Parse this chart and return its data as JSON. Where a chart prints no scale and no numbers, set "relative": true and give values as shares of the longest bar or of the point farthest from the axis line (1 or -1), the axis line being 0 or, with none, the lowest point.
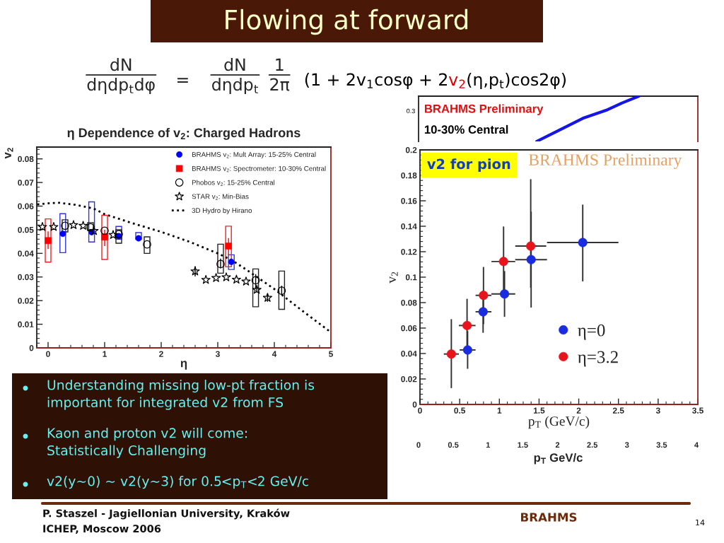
{
  "chart_data": [
    {
      "type": "other",
      "title": "Flowing at forward",
      "annotations": [
        "dN",
        "dηdp$_{t}$dφ",
        "=",
        "dN",
        "dηdp$_{t}$",
        "1",
        "2π",
        "(1 + 2v$_{1}$cosφ + 2",
        "v$_{2}$",
        "(η,p$_{t}$)cos2φ)",
        "Understanding missing low-pt fraction is important for integrated v2 from FS",
        "Kaon and proton v2 will come: Statistically Challenging",
        "v2(y~0) ~ v2(y~3) for 0.5<p$_{T}$<2 GeV/c",
        "P. Staszel - Jagiellonian University, Kraków",
        "ICHEP, Moscow 2006",
        "BRAHMS",
        "14"
      ]
    },
    {
      "type": "scatter",
      "title": "η Dependence of v$_{2}$: Charged Hadrons",
      "xlabel": "η",
      "ylabel": "v$_{2}$",
      "xlim": [
        -0.2,
        5
      ],
      "ylim": [
        0,
        0.085
      ],
      "xticks": [
        0,
        1,
        2,
        3,
        4,
        5
      ],
      "yticks": [
        0,
        0.01,
        0.02,
        0.03,
        0.04,
        0.05,
        0.06,
        0.07,
        0.08
      ],
      "legend": "top right",
      "series": [
        {
          "name": "BRAHMS v$_{2}$: Mult Array: 15-25% Central",
          "type": "scatter",
          "marker": "circle",
          "color": "#0000ff",
          "x": [
            0.26,
            0.77,
            1.25,
            1.6,
            3.24
          ],
          "values": [
            0.0483,
            0.049,
            0.0473,
            0.0464,
            0.0364
          ]
        },
        {
          "name": "BRAHMS v$_{2}$: Spectrometer: 10-30% Central",
          "type": "scatter",
          "marker": "square",
          "color": "#ff0000",
          "x": [
            0,
            1,
            3.19
          ],
          "values": [
            0.0454,
            0.0469,
            0.0431
          ],
          "errors": [
            [
              0.0418,
              0.0493
            ],
            [
              0.0431,
              0.05
            ],
            [
              0.0392,
              0.0465
            ]
          ]
        },
        {
          "name": "Phobos v$_{2}$: 15-25% Central",
          "type": "scatter",
          "marker": "circle",
          "color": "#000000",
          "x": [
            0.3,
            0.75,
            1.0,
            1.25,
            1.75,
            3.05,
            3.67,
            4.13
          ],
          "values": [
            0.0517,
            0.051,
            0.0496,
            0.0481,
            0.0438,
            0.0355,
            0.0286,
            0.0242
          ],
          "errors": [
            null,
            null,
            null,
            null,
            null,
            [
              0.0337,
              0.0378
            ],
            [
              0.0249,
              0.0312
            ],
            [
              0.0224,
              0.0263
            ]
          ]
        },
        {
          "name": "STAR v$_{2}$: Min-Bias",
          "type": "scatter",
          "marker": "star",
          "color": "#000000",
          "x": [
            -0.1,
            0.1,
            0.45,
            0.62,
            0.81,
            1.15,
            2.6,
            2.79,
            2.97,
            3.15,
            3.33,
            3.5,
            3.69,
            3.88
          ],
          "values": [
            0.0512,
            0.0512,
            0.052,
            0.0517,
            0.0495,
            0.0478,
            0.0324,
            0.0288,
            0.0296,
            0.0299,
            0.0289,
            0.0281,
            0.0246,
            0.0212
          ],
          "errors": [
            null,
            null,
            null,
            null,
            null,
            null,
            [
              0.0302,
              0.0346
            ],
            null,
            null,
            null,
            null,
            null,
            [
              0.0234,
              0.0259
            ],
            [
              0.0195,
              0.0229
            ]
          ]
        },
        {
          "name": "3D Hydro by Hirano",
          "type": "line",
          "line_style": "dotted",
          "color": "#000000",
          "x": [
            -0.19,
            0,
            0.2,
            0.5,
            0.8,
            1.0,
            1.5,
            2.0,
            2.5,
            3.0,
            3.25,
            3.5,
            4.0,
            4.5,
            5.0
          ],
          "values": [
            0.0607,
            0.0612,
            0.0614,
            0.0605,
            0.059,
            0.0566,
            0.0527,
            0.0491,
            0.0449,
            0.04,
            0.0371,
            0.0332,
            0.0249,
            0.0156,
            0.0066
          ]
        },
        {
          "type": "bar",
          "color": "#3333dd",
          "x": [
            0.26,
            0.77,
            1.25,
            1.6,
            3.24
          ],
          "base": [
            0.0403,
            0.0448,
            0.046,
            0.0459,
            0.0332
          ],
          "values": [
            0.0165,
            0.017,
            0.0054,
            0.0029,
            0.0062
          ]
        },
        {
          "type": "bar",
          "color": "#ee2222",
          "x": [
            0,
            1,
            3.19
          ],
          "base": [
            0.0363,
            0.0374,
            0.0343
          ],
          "values": [
            0.0183,
            0.0187,
            0.0172
          ]
        },
        {
          "type": "bar",
          "color": "#222222",
          "x": [
            0.3,
            0.75,
            1.25,
            1.75,
            3.05,
            3.67,
            4.13
          ],
          "base": [
            0.0491,
            0.0496,
            0.0443,
            0.04,
            0.0316,
            0.0174,
            0.0163
          ],
          "values": [
            0.0051,
            0.0034,
            0.0057,
            0.007,
            0.0123,
            0.016,
            0.0162
          ]
        }
      ]
    },
    {
      "type": "line",
      "relative": true,
      "xlabel": "p$_{T}$ GeV/c",
      "xlim": [
        0,
        4.02
      ],
      "xticks": [
        0,
        0.5,
        1,
        1.5,
        2,
        2.5,
        3,
        3.5,
        4
      ],
      "annotations": [
        "BRAHMS Preliminary",
        "10-30% Central",
        "0.3"
      ],
      "series": [
        {
          "color": "#1515e6",
          "x": [
            1.7,
            2.04,
            2.38,
            2.72,
            2.93,
            3.17
          ],
          "values": [
            0,
            0.26,
            0.52,
            0.7,
            0.85,
            1
          ]
        }
      ]
    },
    {
      "type": "scatter",
      "title": "v2 for pion",
      "xlabel": "p$_{T}$ (GeV/c)",
      "ylabel": "v$_{2}$",
      "xlim": [
        0,
        3.5
      ],
      "ylim": [
        0,
        0.2
      ],
      "xticks": [
        0,
        0.5,
        1,
        1.5,
        2,
        2.5,
        3,
        3.5
      ],
      "yticks": [
        0,
        0.02,
        0.04,
        0.06,
        0.08,
        0.1,
        0.12,
        0.14,
        0.16,
        0.18,
        0.2
      ],
      "legend": "bottom right",
      "annotations": [
        "BRAHMS Preliminary"
      ],
      "series": [
        {
          "name": "η=0",
          "marker": "circle",
          "color": "#1a2ce0",
          "x": [
            0.6,
            0.795,
            1.065,
            1.4,
            2.05
          ],
          "values": [
            0.0428,
            0.0728,
            0.0868,
            0.1138,
            0.1272
          ],
          "errors": [
            [
              0.028,
              0.0577
            ],
            [
              0.0563,
              0.0893
            ],
            [
              0.0688,
              0.1048
            ],
            [
              0.0761,
              0.1515
            ],
            [
              0.0967,
              0.157
            ]
          ],
          "xerrors": [
            [
              0.5,
              0.7
            ],
            [
              0.7,
              0.9
            ],
            [
              0.9,
              1.2
            ],
            [
              1.2,
              1.6
            ],
            [
              1.6,
              2.5
            ]
          ]
        },
        {
          "name": "η=3.2",
          "marker": "circle",
          "color": "#e8141c",
          "x": [
            0.395,
            0.593,
            0.8,
            1.053,
            1.395
          ],
          "values": [
            0.0396,
            0.062,
            0.0857,
            0.1123,
            0.1244
          ],
          "errors": [
            [
              0.0128,
              0.067
            ],
            [
              0.041,
              0.083
            ],
            [
              0.0631,
              0.108
            ],
            [
              0.0848,
              0.1398
            ],
            [
              0.0917,
              0.177
            ]
          ],
          "xerrors": [
            [
              0.3,
              0.49
            ],
            [
              0.49,
              0.7
            ],
            [
              0.7,
              0.9
            ],
            [
              0.9,
              1.2
            ],
            [
              1.2,
              1.59
            ]
          ]
        }
      ]
    }
  ]
}
